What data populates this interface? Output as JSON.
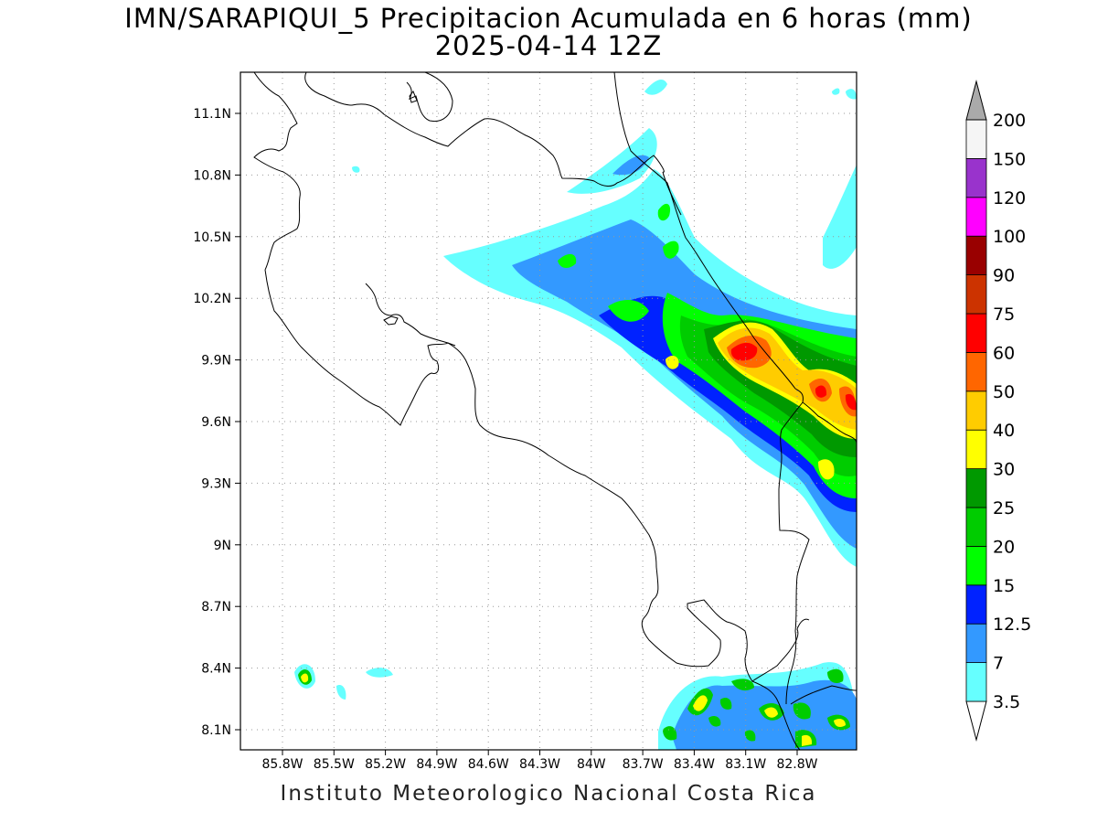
{
  "title_line1": "IMN/SARAPIQUI_5 Precipitacion Acumulada en 6 horas (mm)",
  "title_line2": "2025-04-14 12Z",
  "footer": "Instituto Meteorologico Nacional Costa Rica",
  "lon_ticks": [
    {
      "value": -85.8,
      "label": "85.8W"
    },
    {
      "value": -85.5,
      "label": "85.5W"
    },
    {
      "value": -85.2,
      "label": "85.2W"
    },
    {
      "value": -84.9,
      "label": "84.9W"
    },
    {
      "value": -84.6,
      "label": "84.6W"
    },
    {
      "value": -84.3,
      "label": "84.3W"
    },
    {
      "value": -84.0,
      "label": "84W"
    },
    {
      "value": -83.7,
      "label": "83.7W"
    },
    {
      "value": -83.4,
      "label": "83.4W"
    },
    {
      "value": -83.1,
      "label": "83.1W"
    },
    {
      "value": -82.8,
      "label": "82.8W"
    }
  ],
  "lat_ticks": [
    {
      "value": 11.1,
      "label": "11.1N"
    },
    {
      "value": 10.8,
      "label": "10.8N"
    },
    {
      "value": 10.5,
      "label": "10.5N"
    },
    {
      "value": 10.2,
      "label": "10.2N"
    },
    {
      "value": 9.9,
      "label": "9.9N"
    },
    {
      "value": 9.6,
      "label": "9.6N"
    },
    {
      "value": 9.3,
      "label": "9.3N"
    },
    {
      "value": 9.0,
      "label": "9N"
    },
    {
      "value": 8.7,
      "label": "8.7N"
    },
    {
      "value": 8.4,
      "label": "8.4N"
    },
    {
      "value": 8.1,
      "label": "8.1N"
    }
  ],
  "colorbar": [
    {
      "label": "3.5",
      "color": "#66ffff"
    },
    {
      "label": "7",
      "color": "#3399ff"
    },
    {
      "label": "12.5",
      "color": "#0022ff"
    },
    {
      "label": "15",
      "color": "#00ff00"
    },
    {
      "label": "20",
      "color": "#00cc00"
    },
    {
      "label": "25",
      "color": "#009900"
    },
    {
      "label": "30",
      "color": "#ffff00"
    },
    {
      "label": "40",
      "color": "#ffcc00"
    },
    {
      "label": "50",
      "color": "#ff6600"
    },
    {
      "label": "60",
      "color": "#ff0000"
    },
    {
      "label": "75",
      "color": "#cc3300"
    },
    {
      "label": "90",
      "color": "#990000"
    },
    {
      "label": "100",
      "color": "#ff00ff"
    },
    {
      "label": "120",
      "color": "#9933cc"
    },
    {
      "label": "150",
      "color": "#f5f5f5"
    },
    {
      "label": "200",
      "color": "#aaaaaa"
    }
  ]
}
